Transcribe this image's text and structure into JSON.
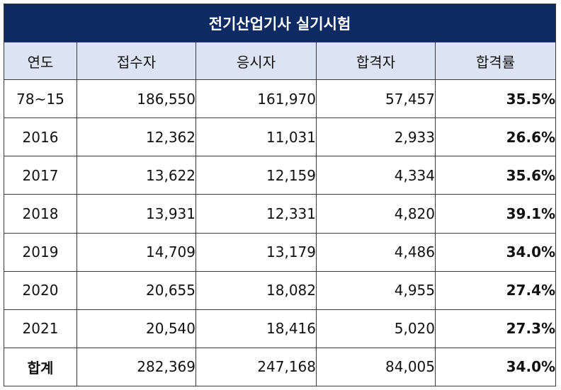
{
  "title": "전기산업기사 실기시험",
  "headers": [
    "연도",
    "접수자",
    "응시자",
    "합격자",
    "합격률"
  ],
  "rows": [
    {
      "year": "78~15",
      "applicants": "186,550",
      "examinees": "161,970",
      "passed": "57,457",
      "rate": "35.5%"
    },
    {
      "year": "2016",
      "applicants": "12,362",
      "examinees": "11,031",
      "passed": "2,933",
      "rate": "26.6%"
    },
    {
      "year": "2017",
      "applicants": "13,622",
      "examinees": "12,159",
      "passed": "4,334",
      "rate": "35.6%"
    },
    {
      "year": "2018",
      "applicants": "13,931",
      "examinees": "12,331",
      "passed": "4,820",
      "rate": "39.1%"
    },
    {
      "year": "2019",
      "applicants": "14,709",
      "examinees": "13,179",
      "passed": "4,486",
      "rate": "34.0%"
    },
    {
      "year": "2020",
      "applicants": "20,655",
      "examinees": "18,082",
      "passed": "4,955",
      "rate": "27.4%"
    },
    {
      "year": "2021",
      "applicants": "20,540",
      "examinees": "18,416",
      "passed": "5,020",
      "rate": "27.3%"
    }
  ],
  "total": {
    "year": "합계",
    "applicants": "282,369",
    "examinees": "247,168",
    "passed": "84,005",
    "rate": "34.0%"
  },
  "colors": {
    "title_bg": "#0d2a63",
    "header_bg": "#dce4f3"
  }
}
